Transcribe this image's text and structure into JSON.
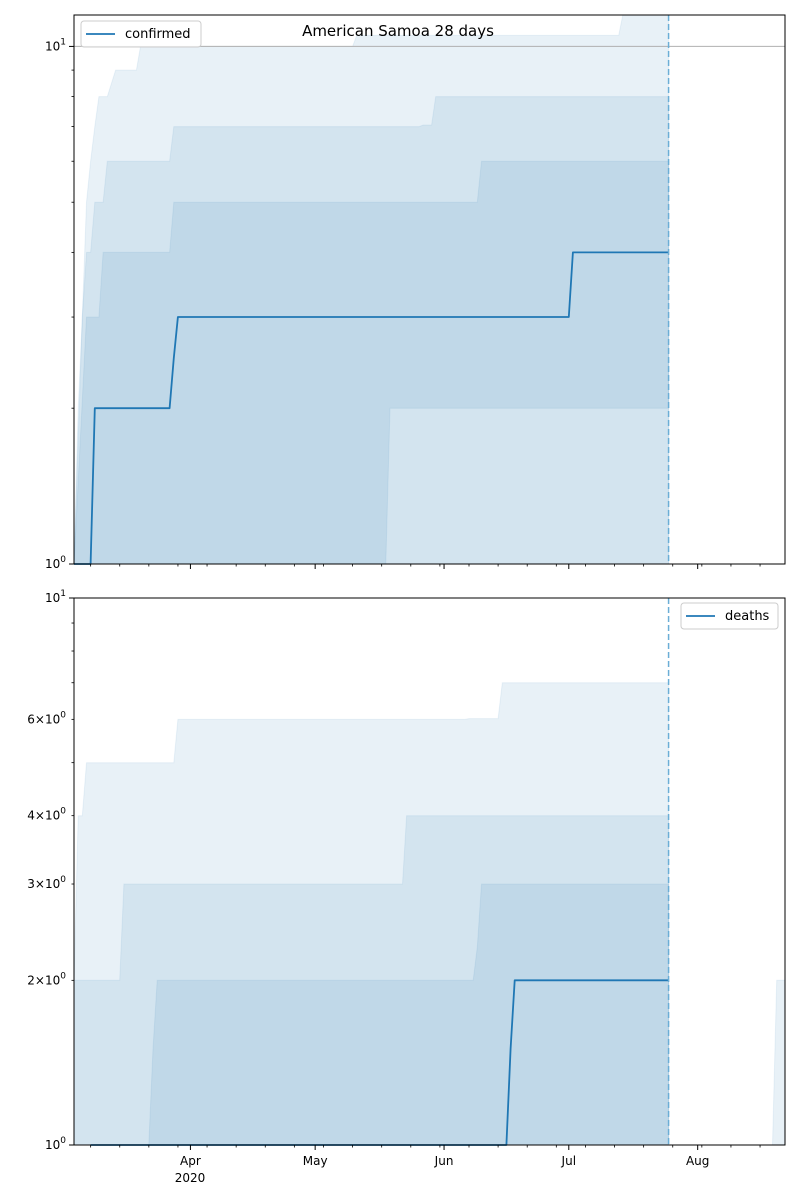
{
  "chart_data": [
    {
      "type": "line",
      "title": "American Samoa 28 days",
      "yscale": "log",
      "ylim": [
        1,
        11.5
      ],
      "y_tick_labels": [
        "10^0",
        "10^1"
      ],
      "xlim": [
        "2020-03-04",
        "2020-08-22"
      ],
      "forecast_date": "2020-07-25",
      "horizontal_line": 10,
      "legend": {
        "label": "confirmed",
        "position": "top-left"
      },
      "colors": {
        "line": "#1f77b4",
        "band": "#1f77b4",
        "vline": "#6baed6",
        "hline": "#b0b0b0"
      },
      "series": {
        "x": [
          "2020-03-04",
          "2020-03-08",
          "2020-03-09",
          "2020-03-27",
          "2020-03-28",
          "2020-03-29",
          "2020-07-01",
          "2020-07-02",
          "2020-07-25"
        ],
        "y": [
          1,
          1,
          2,
          2,
          2.5,
          3,
          3,
          4,
          4
        ]
      },
      "bands": [
        {
          "opacity": 0.1,
          "upper": {
            "x": [
              "2020-03-04",
              "2020-03-06",
              "2020-03-07",
              "2020-03-08",
              "2020-03-09",
              "2020-03-10",
              "2020-03-12",
              "2020-03-14",
              "2020-03-19",
              "2020-03-20",
              "2020-05-10",
              "2020-05-11",
              "2020-07-13",
              "2020-07-14",
              "2020-07-25"
            ],
            "y": [
              1,
              3,
              5,
              6,
              7,
              8,
              8,
              9,
              9,
              10,
              10,
              10.5,
              10.5,
              11.5,
              11.5
            ]
          },
          "lower": {
            "x": [
              "2020-03-04",
              "2020-07-25"
            ],
            "y": [
              1,
              1
            ]
          }
        },
        {
          "opacity": 0.1,
          "upper": {
            "x": [
              "2020-03-04",
              "2020-03-05",
              "2020-03-06",
              "2020-03-07",
              "2020-03-08",
              "2020-03-09",
              "2020-03-11",
              "2020-03-12",
              "2020-03-27",
              "2020-03-28",
              "2020-05-26",
              "2020-05-27",
              "2020-05-29",
              "2020-05-30",
              "2020-07-25"
            ],
            "y": [
              1,
              2,
              3,
              4,
              4,
              5,
              5,
              6,
              6,
              7,
              7,
              7.05,
              7.05,
              8,
              8
            ]
          },
          "lower": {
            "x": [
              "2020-03-04",
              "2020-07-25"
            ],
            "y": [
              1,
              1
            ]
          }
        },
        {
          "opacity": 0.1,
          "upper": {
            "x": [
              "2020-03-04",
              "2020-03-07",
              "2020-03-10",
              "2020-03-11",
              "2020-03-27",
              "2020-03-28",
              "2020-06-09",
              "2020-06-10",
              "2020-07-25"
            ],
            "y": [
              1,
              3,
              3,
              4,
              4,
              5,
              5,
              6,
              6
            ]
          },
          "lower": {
            "x": [
              "2020-03-04",
              "2020-05-18",
              "2020-05-19",
              "2020-07-25"
            ],
            "y": [
              1,
              1,
              2,
              2
            ]
          }
        }
      ]
    },
    {
      "type": "line",
      "title": "",
      "yscale": "log",
      "ylim": [
        1,
        10
      ],
      "y_tick_labels": [
        "10^0",
        "2×10^0",
        "3×10^0",
        "4×10^0",
        "6×10^0",
        "10^1"
      ],
      "x_tick_labels": [
        "Apr",
        "May",
        "Jun",
        "Jul",
        "Aug"
      ],
      "x_year_label": "2020",
      "xlim": [
        "2020-03-04",
        "2020-08-22"
      ],
      "forecast_date": "2020-07-25",
      "legend": {
        "label": "deaths",
        "position": "top-right"
      },
      "colors": {
        "line": "#1f77b4",
        "band": "#1f77b4",
        "vline": "#6baed6"
      },
      "series": {
        "x": [
          "2020-03-08",
          "2020-06-16",
          "2020-06-17",
          "2020-06-18",
          "2020-07-25"
        ],
        "y": [
          1,
          1,
          1.5,
          2,
          2
        ]
      },
      "bands": [
        {
          "opacity": 0.1,
          "upper": {
            "x": [
              "2020-03-04",
              "2020-03-05",
              "2020-03-06",
              "2020-03-07",
              "2020-03-28",
              "2020-03-29",
              "2020-06-06",
              "2020-06-07",
              "2020-06-14",
              "2020-06-15",
              "2020-07-25"
            ],
            "y": [
              2,
              4,
              4,
              5,
              5,
              6,
              6,
              6.02,
              6.02,
              7,
              7
            ]
          },
          "lower": {
            "x": [
              "2020-03-04",
              "2020-07-25"
            ],
            "y": [
              1,
              1
            ]
          }
        },
        {
          "opacity": 0.1,
          "upper": {
            "x": [
              "2020-03-04",
              "2020-03-15",
              "2020-03-16",
              "2020-05-22",
              "2020-05-23",
              "2020-07-25"
            ],
            "y": [
              2,
              2,
              3,
              3,
              4,
              4
            ]
          },
          "lower": {
            "x": [
              "2020-03-04",
              "2020-07-25"
            ],
            "y": [
              1,
              1
            ]
          }
        },
        {
          "opacity": 0.1,
          "upper": {
            "x": [
              "2020-03-22",
              "2020-03-23",
              "2020-03-24",
              "2020-06-08",
              "2020-06-09",
              "2020-06-10",
              "2020-07-25"
            ],
            "y": [
              1,
              1.5,
              2,
              2,
              2.3,
              3,
              3
            ]
          },
          "lower": {
            "x": [
              "2020-03-22",
              "2020-07-25"
            ],
            "y": [
              1,
              1
            ]
          }
        },
        {
          "opacity": 0.1,
          "upper": {
            "x": [
              "2020-08-19",
              "2020-08-20",
              "2020-08-22"
            ],
            "y": [
              1,
              2,
              2
            ]
          },
          "lower": {
            "x": [
              "2020-08-19",
              "2020-08-22"
            ],
            "y": [
              1,
              1
            ]
          }
        }
      ]
    }
  ]
}
